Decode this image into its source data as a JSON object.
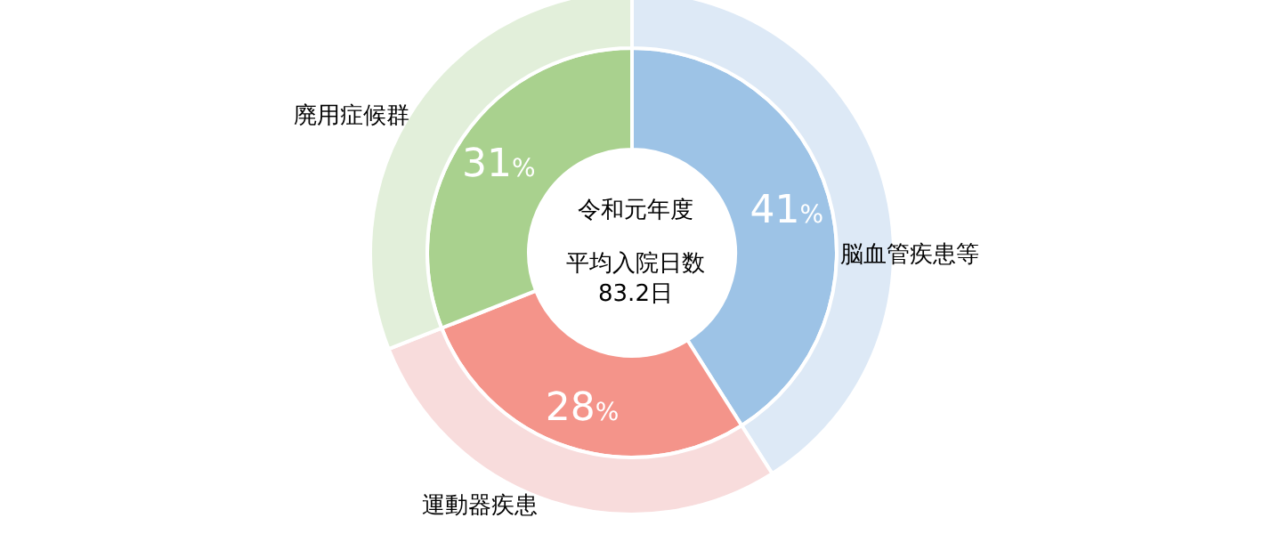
{
  "chart_data": {
    "type": "donut",
    "categories": [
      "脳血管疾患等",
      "運動器疾患",
      "廃用症候群"
    ],
    "series": [
      {
        "values": [
          41,
          28,
          31
        ],
        "colors": [
          "#9dc3e6",
          "#f4948a",
          "#a9d18e"
        ],
        "value_labels": [
          "41%",
          "28%",
          "31%"
        ]
      },
      {
        "values": [
          41,
          28,
          31
        ],
        "colors": [
          "#dde9f6",
          "#f8dcdc",
          "#e2efda"
        ]
      }
    ],
    "annotations": [
      "令和元年度",
      "平均入院日数",
      "83.2日"
    ]
  }
}
